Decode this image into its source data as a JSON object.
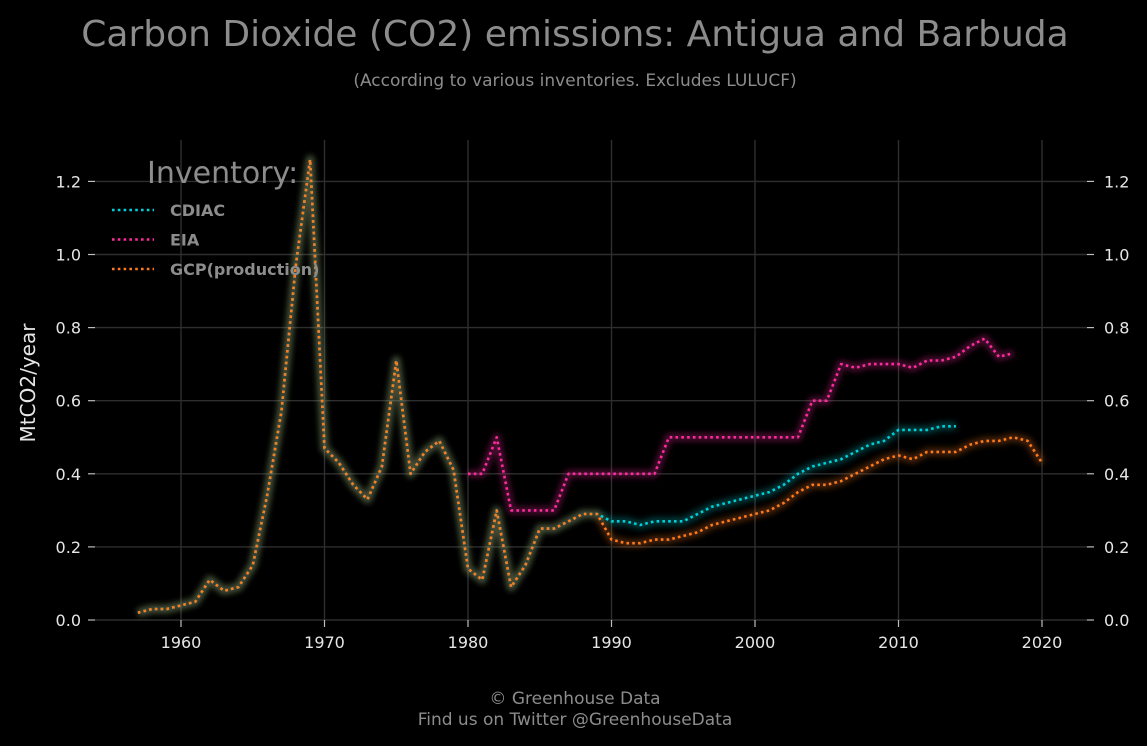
{
  "chart_data": {
    "type": "line",
    "title": "Carbon Dioxide (CO2) emissions: Antigua and Barbuda",
    "subtitle": "(According to various inventories. Excludes LULUCF)",
    "xlabel": "",
    "ylabel": "MtCO2/year",
    "xlim": [
      1954,
      2023
    ],
    "ylim": [
      0,
      1.3
    ],
    "x_ticks": [
      1960,
      1970,
      1980,
      1990,
      2000,
      2010,
      2020
    ],
    "y_ticks": [
      0.0,
      0.2,
      0.4,
      0.6,
      0.8,
      1.0,
      1.2
    ],
    "y_tick_labels": [
      "0.0",
      "0.2",
      "0.4",
      "0.6",
      "0.8",
      "1.0",
      "1.2"
    ],
    "grid": true,
    "legend": {
      "title": "Inventory:",
      "placement": "top-left"
    },
    "series": [
      {
        "name": "CDIAC",
        "color": "#00d0d8",
        "x": [
          1957,
          1958,
          1959,
          1960,
          1961,
          1962,
          1963,
          1964,
          1965,
          1966,
          1967,
          1968,
          1969,
          1970,
          1971,
          1972,
          1973,
          1974,
          1975,
          1976,
          1977,
          1978,
          1979,
          1980,
          1981,
          1982,
          1983,
          1984,
          1985,
          1986,
          1987,
          1988,
          1989,
          1990,
          1991,
          1992,
          1993,
          1994,
          1995,
          1996,
          1997,
          1998,
          1999,
          2000,
          2001,
          2002,
          2003,
          2004,
          2005,
          2006,
          2007,
          2008,
          2009,
          2010,
          2011,
          2012,
          2013,
          2014
        ],
        "values": [
          0.02,
          0.03,
          0.03,
          0.04,
          0.05,
          0.11,
          0.08,
          0.09,
          0.15,
          0.34,
          0.57,
          0.97,
          1.26,
          0.47,
          0.43,
          0.37,
          0.33,
          0.42,
          0.71,
          0.4,
          0.46,
          0.49,
          0.41,
          0.14,
          0.11,
          0.3,
          0.09,
          0.15,
          0.25,
          0.25,
          0.27,
          0.29,
          0.29,
          0.27,
          0.27,
          0.26,
          0.27,
          0.27,
          0.27,
          0.29,
          0.31,
          0.32,
          0.33,
          0.34,
          0.35,
          0.37,
          0.4,
          0.42,
          0.43,
          0.44,
          0.46,
          0.48,
          0.49,
          0.52,
          0.52,
          0.52,
          0.53,
          0.53
        ]
      },
      {
        "name": "EIA",
        "color": "#ff2aa0",
        "x": [
          1980,
          1981,
          1982,
          1983,
          1984,
          1985,
          1986,
          1987,
          1988,
          1989,
          1990,
          1991,
          1992,
          1993,
          1994,
          1995,
          1996,
          1997,
          1998,
          1999,
          2000,
          2001,
          2002,
          2003,
          2004,
          2005,
          2006,
          2007,
          2008,
          2009,
          2010,
          2011,
          2012,
          2013,
          2014,
          2015,
          2016,
          2017,
          2018
        ],
        "values": [
          0.4,
          0.4,
          0.5,
          0.3,
          0.3,
          0.3,
          0.3,
          0.4,
          0.4,
          0.4,
          0.4,
          0.4,
          0.4,
          0.4,
          0.5,
          0.5,
          0.5,
          0.5,
          0.5,
          0.5,
          0.5,
          0.5,
          0.5,
          0.5,
          0.6,
          0.6,
          0.7,
          0.69,
          0.7,
          0.7,
          0.7,
          0.69,
          0.71,
          0.71,
          0.72,
          0.75,
          0.77,
          0.72,
          0.73
        ]
      },
      {
        "name": "GCP(production)",
        "color": "#ff7a1a",
        "x": [
          1957,
          1958,
          1959,
          1960,
          1961,
          1962,
          1963,
          1964,
          1965,
          1966,
          1967,
          1968,
          1969,
          1970,
          1971,
          1972,
          1973,
          1974,
          1975,
          1976,
          1977,
          1978,
          1979,
          1980,
          1981,
          1982,
          1983,
          1984,
          1985,
          1986,
          1987,
          1988,
          1989,
          1990,
          1991,
          1992,
          1993,
          1994,
          1995,
          1996,
          1997,
          1998,
          1999,
          2000,
          2001,
          2002,
          2003,
          2004,
          2005,
          2006,
          2007,
          2008,
          2009,
          2010,
          2011,
          2012,
          2013,
          2014,
          2015,
          2016,
          2017,
          2018,
          2019,
          2020
        ],
        "values": [
          0.02,
          0.03,
          0.03,
          0.04,
          0.05,
          0.11,
          0.08,
          0.09,
          0.15,
          0.34,
          0.57,
          0.97,
          1.26,
          0.47,
          0.43,
          0.37,
          0.33,
          0.42,
          0.71,
          0.4,
          0.46,
          0.49,
          0.41,
          0.14,
          0.11,
          0.3,
          0.09,
          0.15,
          0.25,
          0.25,
          0.27,
          0.29,
          0.29,
          0.22,
          0.21,
          0.21,
          0.22,
          0.22,
          0.23,
          0.24,
          0.26,
          0.27,
          0.28,
          0.29,
          0.3,
          0.32,
          0.35,
          0.37,
          0.37,
          0.38,
          0.4,
          0.42,
          0.44,
          0.45,
          0.44,
          0.46,
          0.46,
          0.46,
          0.48,
          0.49,
          0.49,
          0.5,
          0.49,
          0.43
        ]
      }
    ]
  },
  "footer": {
    "line1": "© Greenhouse Data",
    "line2": "Find us on Twitter @GreenhouseData"
  }
}
